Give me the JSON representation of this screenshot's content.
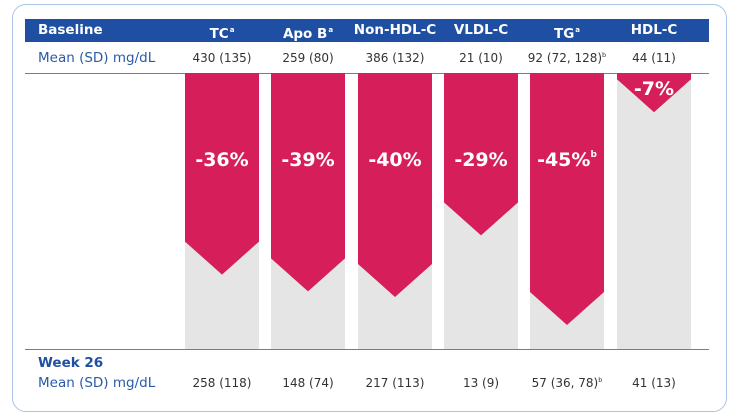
{
  "chart_data": {
    "type": "bar",
    "title": "",
    "baseline_label": "Baseline",
    "baseline_row_label": "Mean (SD) mg/dL",
    "week_label": "Week 26",
    "week_row_label": "Mean (SD) mg/dL",
    "categories": [
      {
        "name": "TC",
        "sup": "a"
      },
      {
        "name": "Apo B",
        "sup": "a"
      },
      {
        "name": "Non-HDL-C",
        "sup": ""
      },
      {
        "name": "VLDL-C",
        "sup": ""
      },
      {
        "name": "TG",
        "sup": "a"
      },
      {
        "name": "HDL-C",
        "sup": ""
      }
    ],
    "baseline_values": [
      {
        "text": "430 (135)",
        "sup": ""
      },
      {
        "text": "259 (80)",
        "sup": ""
      },
      {
        "text": "386 (132)",
        "sup": ""
      },
      {
        "text": "21 (10)",
        "sup": ""
      },
      {
        "text": "92 (72, 128)",
        "sup": "b"
      },
      {
        "text": "44 (11)",
        "sup": ""
      }
    ],
    "week26_values": [
      {
        "text": "258 (118)",
        "sup": ""
      },
      {
        "text": "148 (74)",
        "sup": ""
      },
      {
        "text": "217 (113)",
        "sup": ""
      },
      {
        "text": "13 (9)",
        "sup": ""
      },
      {
        "text": "57 (36, 78)",
        "sup": "b"
      },
      {
        "text": "41 (13)",
        "sup": ""
      }
    ],
    "percent_change": [
      -36,
      -39,
      -40,
      -29,
      -45,
      -7
    ],
    "percent_labels": [
      {
        "text": "-36%",
        "sup": ""
      },
      {
        "text": "-39%",
        "sup": ""
      },
      {
        "text": "-40%",
        "sup": ""
      },
      {
        "text": "-29%",
        "sup": ""
      },
      {
        "text": "-45%",
        "sup": "b"
      },
      {
        "text": "-7%",
        "sup": ""
      }
    ],
    "ylim": [
      -50,
      0
    ],
    "colors": {
      "reduction": "#d61f5a",
      "background_bar": "#e5e5e5",
      "header": "#1e4fa2"
    }
  }
}
